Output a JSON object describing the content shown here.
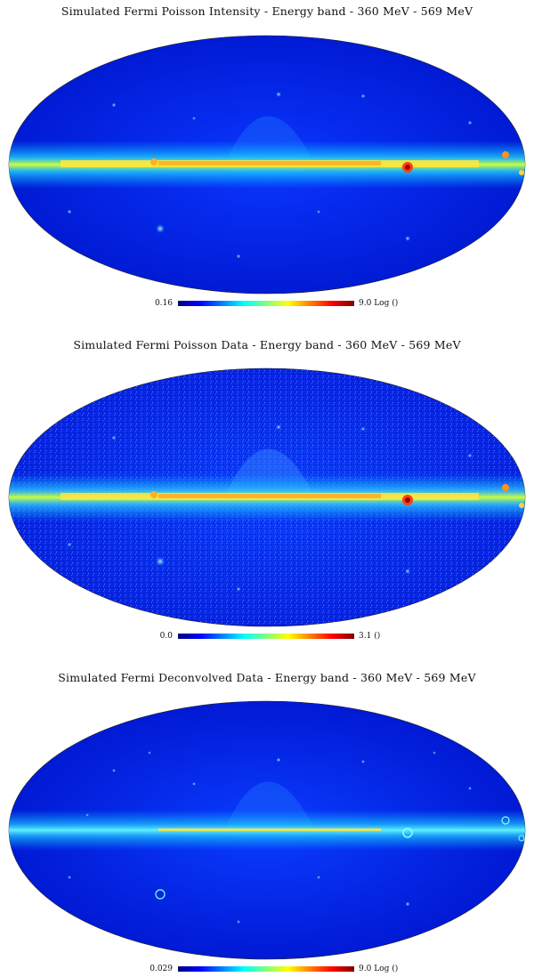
{
  "panels": [
    {
      "title": "Simulated Fermi Poisson Intensity - Energy band - 360 MeV - 569 MeV",
      "colorbar": {
        "min": "0.16",
        "max": "9.0",
        "unit": "Log ()"
      }
    },
    {
      "title": "Simulated Fermi Poisson Data - Energy band - 360 MeV - 569 MeV",
      "colorbar": {
        "min": "0.0",
        "max": "3.1",
        "unit": "()"
      }
    },
    {
      "title": "Simulated Fermi Deconvolved Data - Energy band - 360 MeV - 569 MeV",
      "colorbar": {
        "min": "0.029",
        "max": "9.0",
        "unit": "Log ()"
      }
    }
  ],
  "colors": {
    "background": "#0000d8",
    "galactic_plane": "#ffff40",
    "hotspot": "#cc0000"
  }
}
